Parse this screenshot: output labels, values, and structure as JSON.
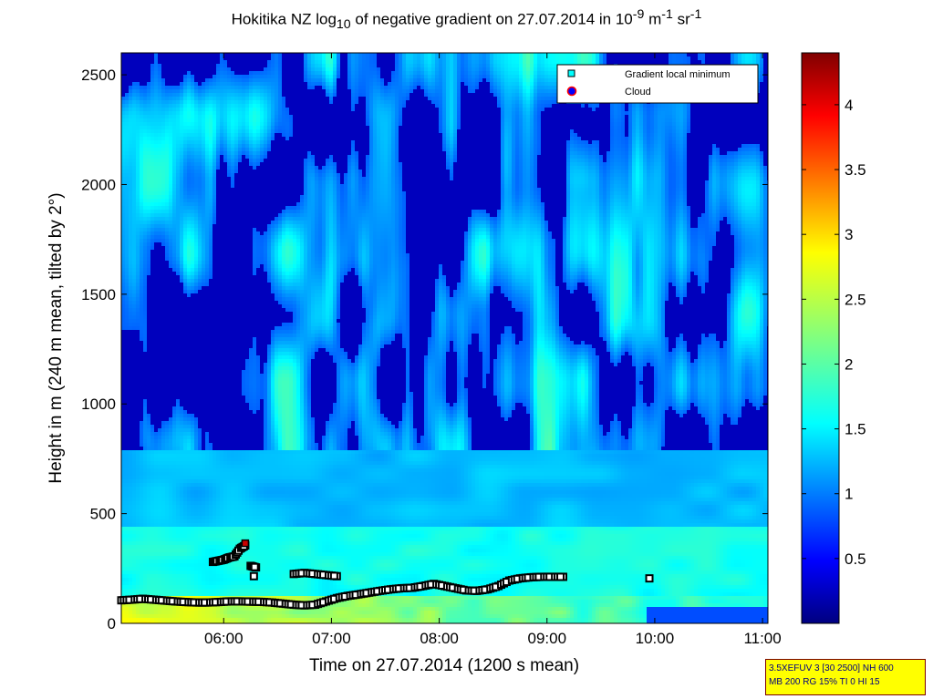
{
  "title": {
    "prefix": "Hokitika NZ log",
    "sub": "10",
    "middle": " of negative gradient on 27.07.2014 in 10",
    "sup1": "-9",
    "middle2": " m",
    "sup2": "-1",
    "middle3": " sr",
    "sup3": "-1"
  },
  "info_box": {
    "line1": "3.5XEFUV 3 [30 2500] NH 600",
    "line2": "MB 200 RG 15% TI 0 HI 15"
  },
  "chart_data": {
    "type": "heatmap",
    "xlabel": "Time on 27.07.2014 (1200 s mean)",
    "ylabel": "Height in m (240 m mean, tilted by 2°)",
    "x_range_hours": [
      5.05,
      11.05
    ],
    "y_range_m": [
      0,
      2600
    ],
    "x_ticks": [
      "06:00",
      "07:00",
      "08:00",
      "09:00",
      "10:00",
      "11:00"
    ],
    "x_tick_hours": [
      6,
      7,
      8,
      9,
      10,
      11
    ],
    "y_ticks": [
      0,
      500,
      1000,
      1500,
      2000,
      2500
    ],
    "colorbar": {
      "range": [
        0,
        4.4
      ],
      "ticks": [
        0.5,
        1,
        1.5,
        2,
        2.5,
        3,
        3.5,
        4
      ],
      "colormap": "jet"
    },
    "legend": {
      "position": "top-right",
      "entries": [
        "Gradient local minimum",
        "Cloud"
      ]
    },
    "series": [
      {
        "name": "Gradient local minimum",
        "marker": "square",
        "points": [
          [
            5.05,
            105
          ],
          [
            5.15,
            108
          ],
          [
            5.25,
            112
          ],
          [
            5.35,
            108
          ],
          [
            5.45,
            104
          ],
          [
            5.55,
            100
          ],
          [
            5.65,
            97
          ],
          [
            5.75,
            95
          ],
          [
            5.85,
            95
          ],
          [
            5.95,
            97
          ],
          [
            6.05,
            100
          ],
          [
            6.15,
            100
          ],
          [
            6.25,
            99
          ],
          [
            6.35,
            98
          ],
          [
            6.45,
            95
          ],
          [
            6.55,
            90
          ],
          [
            6.65,
            85
          ],
          [
            6.75,
            82
          ],
          [
            6.85,
            85
          ],
          [
            6.95,
            100
          ],
          [
            7.05,
            115
          ],
          [
            7.15,
            125
          ],
          [
            7.25,
            132
          ],
          [
            7.35,
            140
          ],
          [
            7.45,
            148
          ],
          [
            7.55,
            155
          ],
          [
            7.65,
            160
          ],
          [
            7.75,
            162
          ],
          [
            7.85,
            170
          ],
          [
            7.95,
            180
          ],
          [
            8.05,
            170
          ],
          [
            8.15,
            160
          ],
          [
            8.25,
            150
          ],
          [
            8.35,
            148
          ],
          [
            8.45,
            155
          ],
          [
            8.55,
            170
          ],
          [
            8.65,
            195
          ],
          [
            8.75,
            205
          ],
          [
            8.85,
            210
          ],
          [
            8.95,
            212
          ],
          [
            9.05,
            212
          ],
          [
            9.15,
            212
          ],
          [
            6.65,
            225
          ],
          [
            6.75,
            230
          ],
          [
            6.85,
            225
          ],
          [
            6.95,
            220
          ],
          [
            7.05,
            215
          ],
          [
            5.9,
            280
          ],
          [
            5.95,
            285
          ],
          [
            6.0,
            290
          ],
          [
            6.05,
            300
          ],
          [
            6.1,
            305
          ],
          [
            6.15,
            340
          ],
          [
            6.2,
            355
          ],
          [
            6.25,
            262
          ],
          [
            6.3,
            255
          ],
          [
            6.28,
            215
          ],
          [
            9.95,
            205
          ]
        ]
      },
      {
        "name": "Cloud",
        "marker": "circle",
        "points": [
          [
            6.2,
            365
          ]
        ]
      }
    ]
  }
}
